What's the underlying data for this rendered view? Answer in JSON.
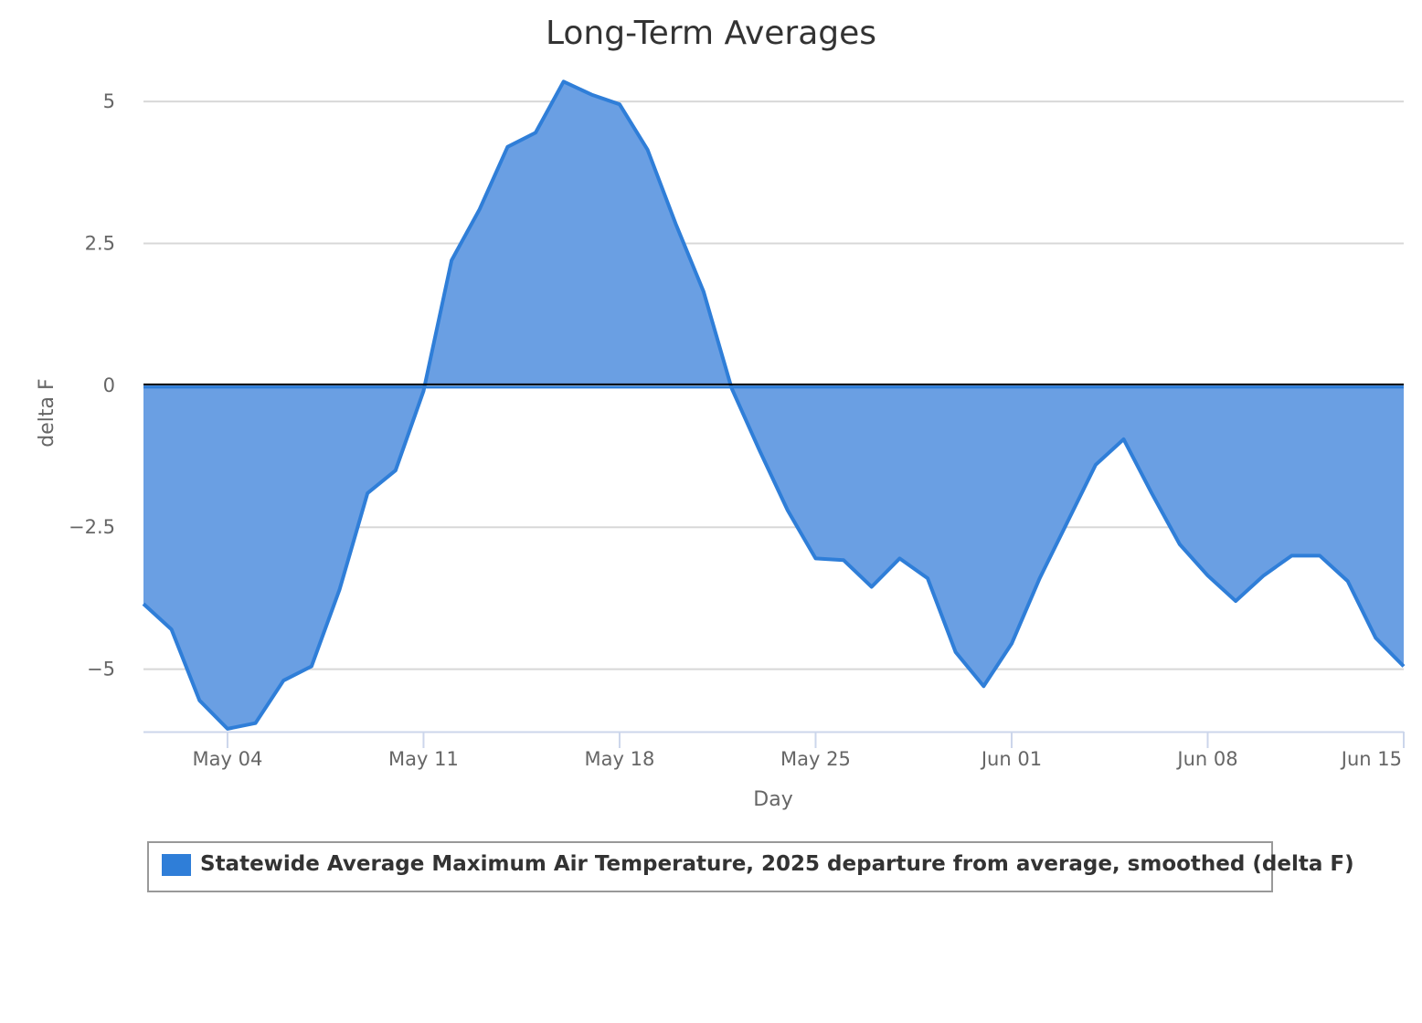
{
  "colors": {
    "series_fill": "#6a9fe3",
    "series_line": "#2f7ed8",
    "grid": "#d8d8d8",
    "zero_line": "#000000",
    "axis": "#ccd6eb",
    "text": "#666666"
  },
  "chart_data": {
    "type": "area",
    "title": "Long-Term Averages",
    "xlabel": "Day",
    "ylabel": "delta F",
    "ylim": [
      -6.1,
      5.5
    ],
    "xlim": [
      "2025-05-01",
      "2025-06-15"
    ],
    "yticks": [
      5,
      2.5,
      0,
      -2.5,
      -5
    ],
    "ytick_labels": [
      "5",
      "2.5",
      "0",
      "−2.5",
      "−5"
    ],
    "xticks": [
      "2025-05-04",
      "2025-05-11",
      "2025-05-18",
      "2025-05-25",
      "2025-06-01",
      "2025-06-08",
      "2025-06-15"
    ],
    "xtick_labels": [
      "May 04",
      "May 11",
      "May 18",
      "May 25",
      "Jun 01",
      "Jun 08",
      "Jun 15"
    ],
    "grid": true,
    "legend_position": "bottom",
    "series": [
      {
        "name": "Statewide Average Maximum Air Temperature, 2025 departure from average, smoothed (delta F)",
        "x": [
          "2025-05-01",
          "2025-05-02",
          "2025-05-03",
          "2025-05-04",
          "2025-05-05",
          "2025-05-06",
          "2025-05-07",
          "2025-05-08",
          "2025-05-09",
          "2025-05-10",
          "2025-05-11",
          "2025-05-12",
          "2025-05-13",
          "2025-05-14",
          "2025-05-15",
          "2025-05-16",
          "2025-05-17",
          "2025-05-18",
          "2025-05-19",
          "2025-05-20",
          "2025-05-21",
          "2025-05-22",
          "2025-05-23",
          "2025-05-24",
          "2025-05-25",
          "2025-05-26",
          "2025-05-27",
          "2025-05-28",
          "2025-05-29",
          "2025-05-30",
          "2025-05-31",
          "2025-06-01",
          "2025-06-02",
          "2025-06-03",
          "2025-06-04",
          "2025-06-05",
          "2025-06-06",
          "2025-06-07",
          "2025-06-08",
          "2025-06-09",
          "2025-06-10",
          "2025-06-11",
          "2025-06-12",
          "2025-06-13",
          "2025-06-14",
          "2025-06-15"
        ],
        "values": [
          -3.85,
          -4.3,
          -5.55,
          -6.05,
          -5.95,
          -5.2,
          -4.95,
          -3.6,
          -1.9,
          -1.5,
          -0.1,
          2.2,
          3.1,
          4.2,
          4.45,
          5.35,
          5.12,
          4.95,
          4.15,
          2.85,
          1.65,
          -0.05,
          -1.15,
          -2.2,
          -3.05,
          -3.08,
          -3.55,
          -3.05,
          -3.4,
          -4.7,
          -5.3,
          -4.55,
          -3.4,
          -2.4,
          -1.4,
          -0.95,
          -1.9,
          -2.8,
          -3.35,
          -3.8,
          -3.35,
          -3.0,
          -3.0,
          -3.45,
          -4.45,
          -4.95
        ]
      }
    ]
  },
  "legend": {
    "label": "Statewide Average Maximum Air Temperature, 2025 departure from average, smoothed (delta F)"
  }
}
